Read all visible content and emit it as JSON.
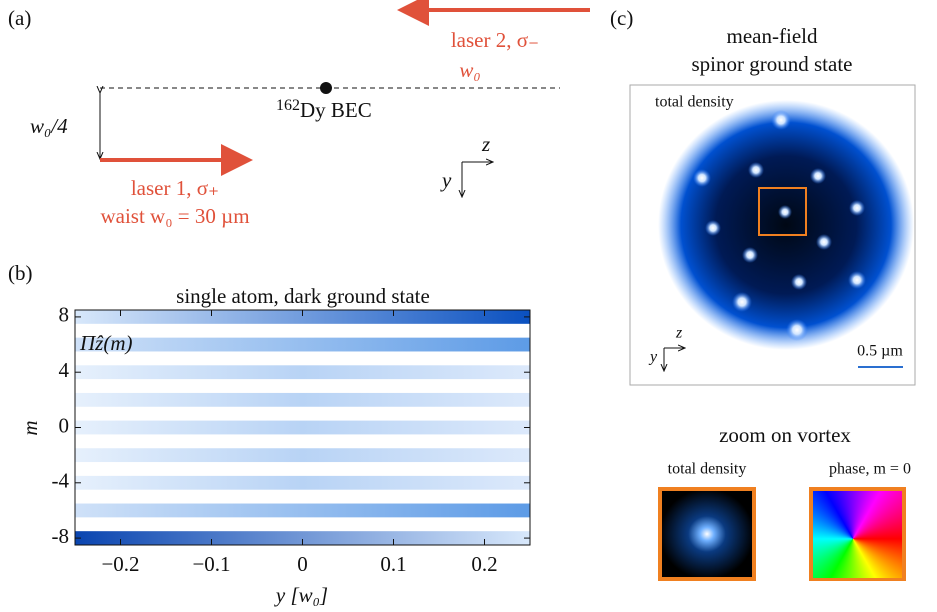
{
  "panel_a": {
    "label": "(a)",
    "laser2": "laser 2, σ₋",
    "laser2_waist": "w₀",
    "bec_mass": "162",
    "bec": "Dy BEC",
    "offset": "w₀/4",
    "laser1": "laser 1, σ₊",
    "laser1_waist": "waist w₀ = 30 µm",
    "axis_z": "z",
    "axis_y": "y"
  },
  "chart_data": {
    "type": "heatmap",
    "panel_label": "(b)",
    "title": "single atom, dark ground state",
    "annotation": "Πẑ(m)",
    "x_label": "y [w₀]",
    "y_label": "m",
    "xlim": [
      -0.25,
      0.25
    ],
    "ylim": [
      -8.5,
      8.5
    ],
    "xticks": [
      {
        "value": -0.2,
        "label": "−0.2"
      },
      {
        "value": -0.1,
        "label": "−0.1"
      },
      0,
      0.1,
      0.2
    ],
    "yticks": [
      -8,
      -4,
      0,
      4,
      8
    ]
  },
  "panel_c": {
    "label": "(c)",
    "title_line1": "mean-field",
    "title_line2": "spinor ground state",
    "inset_label": "total density",
    "scale_bar": "0.5 µm",
    "axis_z": "z",
    "axis_y": "y",
    "zoom_title": "zoom on vortex",
    "zoom_density": "total density",
    "zoom_phase": "phase, m = 0"
  }
}
